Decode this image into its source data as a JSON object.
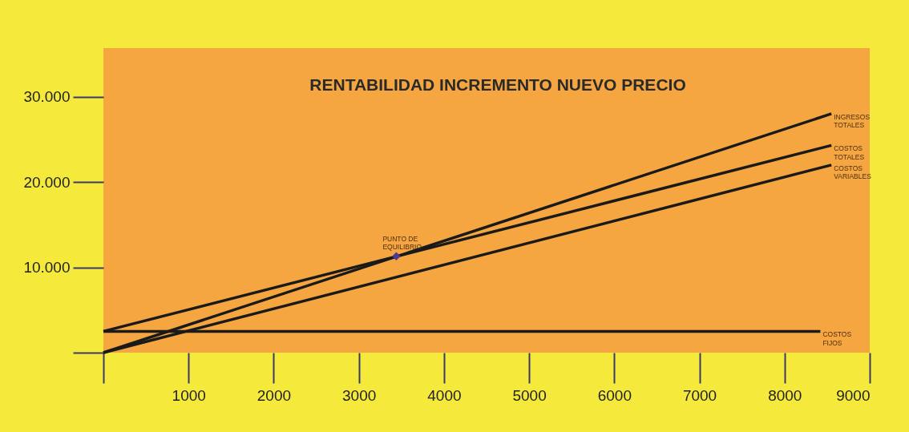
{
  "chart_data": {
    "type": "line",
    "title": "RENTABILIDAD INCREMENTO NUEVO PRECIO",
    "xlim": [
      0,
      9000
    ],
    "ylim": [
      0,
      35700
    ],
    "xticks": [
      {
        "value": 0,
        "label": null
      },
      1000,
      2000,
      3000,
      4000,
      5000,
      6000,
      7000,
      8000,
      9000
    ],
    "yticks": [
      {
        "value": 0,
        "label": null
      },
      {
        "value": 10000,
        "label": "10.000"
      },
      {
        "value": 20000,
        "label": "20.000"
      },
      {
        "value": 30000,
        "label": "30.000"
      }
    ],
    "grid": false,
    "marker": "none",
    "line_style": "solid",
    "series": [
      {
        "name": "INGRESOS TOTALES",
        "color": "#1a1a1a",
        "x": [
          0,
          8550
        ],
        "values": [
          0,
          28000
        ]
      },
      {
        "name": "COSTOS TOTALES",
        "color": "#1a1a1a",
        "x": [
          0,
          8550
        ],
        "values": [
          2500,
          24300
        ]
      },
      {
        "name": "COSTOS VARIABLES",
        "color": "#1a1a1a",
        "x": [
          0,
          8550
        ],
        "values": [
          0,
          22000
        ]
      },
      {
        "name": "COSTOS FIJOS",
        "color": "#1a1a1a",
        "x": [
          0,
          8420
        ],
        "values": [
          2500,
          2500
        ]
      },
      {
        "name": "PUNTO DE EQUILIBRIO",
        "type": "scatter",
        "marker": "diamond",
        "color": "#4b3a8f",
        "x": [
          3440
        ],
        "values": [
          11300
        ]
      }
    ]
  }
}
